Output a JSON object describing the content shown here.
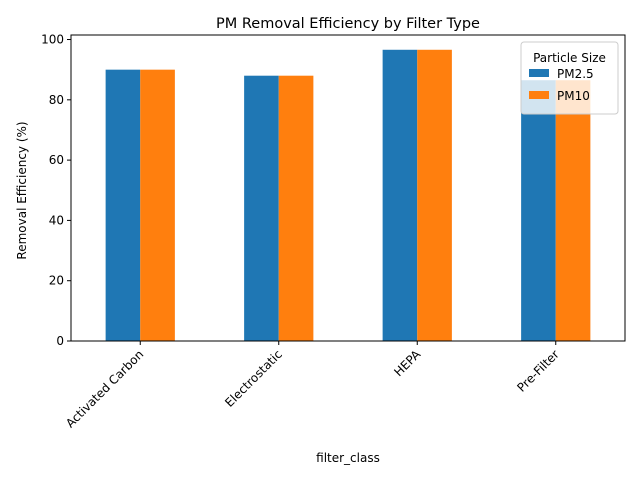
{
  "chart_data": {
    "type": "bar",
    "title": "PM Removal Efficiency by Filter Type",
    "xlabel": "filter_class",
    "ylabel": "Removal Efficiency (%)",
    "categories": [
      "Activated Carbon",
      "Electrostatic",
      "HEPA",
      "Pre-Filter"
    ],
    "series": [
      {
        "name": "PM2.5",
        "values": [
          90,
          88,
          96.6,
          86.5
        ],
        "color": "#1f77b4"
      },
      {
        "name": "PM10",
        "values": [
          90,
          88,
          96.6,
          86.5
        ],
        "color": "#ff7f0e"
      }
    ],
    "ylim": [
      0,
      101.5
    ],
    "yticks": [
      0,
      20,
      40,
      60,
      80,
      100
    ],
    "grid": false,
    "legend": {
      "title": "Particle Size",
      "placement": "top-right"
    },
    "xtick_rotation_deg": 45
  }
}
